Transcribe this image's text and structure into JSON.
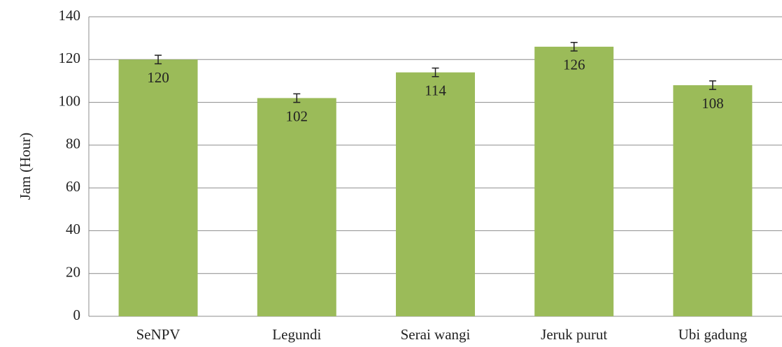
{
  "chart_data": {
    "type": "bar",
    "y_label": "Jam (Hour)",
    "categories": [
      "SeNPV",
      "Legundi",
      "Serai wangi",
      "Jeruk purut",
      "Ubi gadung"
    ],
    "values": [
      120,
      102,
      114,
      126,
      108
    ],
    "errors": [
      2,
      2,
      2,
      2,
      2
    ],
    "color": "#9bbb59",
    "ylim": [
      0,
      140
    ],
    "yticks": [
      0,
      20,
      40,
      60,
      80,
      100,
      120,
      140
    ],
    "grid": true
  }
}
